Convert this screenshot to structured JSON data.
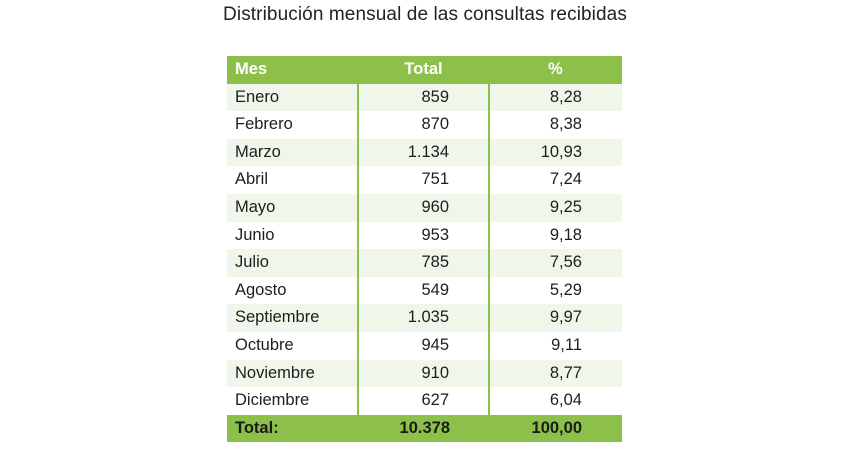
{
  "title": "Distribución mensual de las consultas recibidas",
  "table": {
    "headers": [
      "Mes",
      "Total",
      "%"
    ],
    "rows": [
      {
        "mes": "Enero",
        "total": "859",
        "pct": "8,28"
      },
      {
        "mes": "Febrero",
        "total": "870",
        "pct": "8,38"
      },
      {
        "mes": "Marzo",
        "total": "1.134",
        "pct": "10,93"
      },
      {
        "mes": "Abril",
        "total": "751",
        "pct": "7,24"
      },
      {
        "mes": "Mayo",
        "total": "960",
        "pct": "9,25"
      },
      {
        "mes": "Junio",
        "total": "953",
        "pct": "9,18"
      },
      {
        "mes": "Julio",
        "total": "785",
        "pct": "7,56"
      },
      {
        "mes": "Agosto",
        "total": "549",
        "pct": "5,29"
      },
      {
        "mes": "Septiembre",
        "total": "1.035",
        "pct": "9,97"
      },
      {
        "mes": "Octubre",
        "total": "945",
        "pct": "9,11"
      },
      {
        "mes": "Noviembre",
        "total": "910",
        "pct": "8,77"
      },
      {
        "mes": "Diciembre",
        "total": "627",
        "pct": "6,04"
      }
    ],
    "footer": {
      "label": "Total:",
      "total": "10.378",
      "pct": "100,00"
    }
  },
  "colors": {
    "accent": "#8cc04b",
    "row_alt": "#f1f6ea",
    "header_text": "#ffffff"
  }
}
